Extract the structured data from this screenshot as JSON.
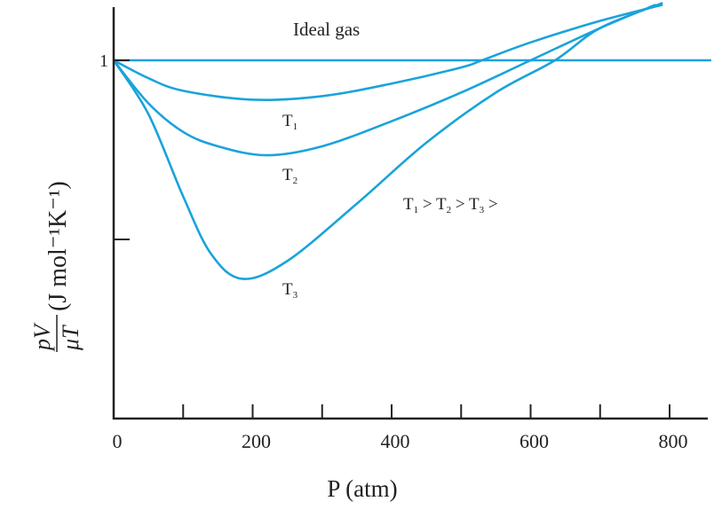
{
  "chart_data": {
    "type": "line",
    "title": "",
    "xlabel": "P (atm)",
    "ylabel_numerator": "pV",
    "ylabel_denominator": "μT",
    "ylabel_units": "(J mol⁻¹K⁻¹)",
    "xlim": [
      0,
      860
    ],
    "ylim": [
      0,
      1.15
    ],
    "x_ticks": [
      0,
      100,
      200,
      300,
      400,
      500,
      600,
      700,
      800
    ],
    "x_tick_labels": [
      "0",
      "200",
      "400",
      "600",
      "800"
    ],
    "x_tick_label_values": [
      0,
      200,
      400,
      600,
      800
    ],
    "y_ticks": [
      1,
      0.5
    ],
    "y_tick_labels": [
      "1",
      ""
    ],
    "grid": false,
    "line_color": "#1aa3db",
    "series": [
      {
        "name": "Ideal gas",
        "x": [
          0,
          860
        ],
        "y": [
          1,
          1
        ]
      },
      {
        "name": "T1",
        "x": [
          0,
          50,
          100,
          200,
          300,
          400,
          500,
          530,
          600,
          700,
          790
        ],
        "y": [
          1,
          0.95,
          0.915,
          0.89,
          0.9,
          0.935,
          0.98,
          1.0,
          1.05,
          1.11,
          1.155
        ]
      },
      {
        "name": "T2",
        "x": [
          0,
          50,
          100,
          150,
          220,
          300,
          400,
          500,
          600,
          700,
          780
        ],
        "y": [
          1,
          0.88,
          0.8,
          0.76,
          0.735,
          0.76,
          0.83,
          0.91,
          1.0,
          1.09,
          1.155
        ]
      },
      {
        "name": "T3",
        "x": [
          0,
          50,
          100,
          140,
          185,
          250,
          350,
          450,
          550,
          635,
          700,
          790
        ],
        "y": [
          1,
          0.85,
          0.62,
          0.46,
          0.39,
          0.44,
          0.6,
          0.77,
          0.91,
          1.0,
          1.09,
          1.16
        ]
      }
    ],
    "annotations": {
      "ideal": "Ideal gas",
      "t1": "T",
      "t1_sub": "1",
      "t2": "T",
      "t2_sub": "2",
      "t3": "T",
      "t3_sub": "3",
      "order": [
        "T",
        "1",
        " > T",
        "2",
        " > T",
        "3",
        " >"
      ]
    }
  }
}
